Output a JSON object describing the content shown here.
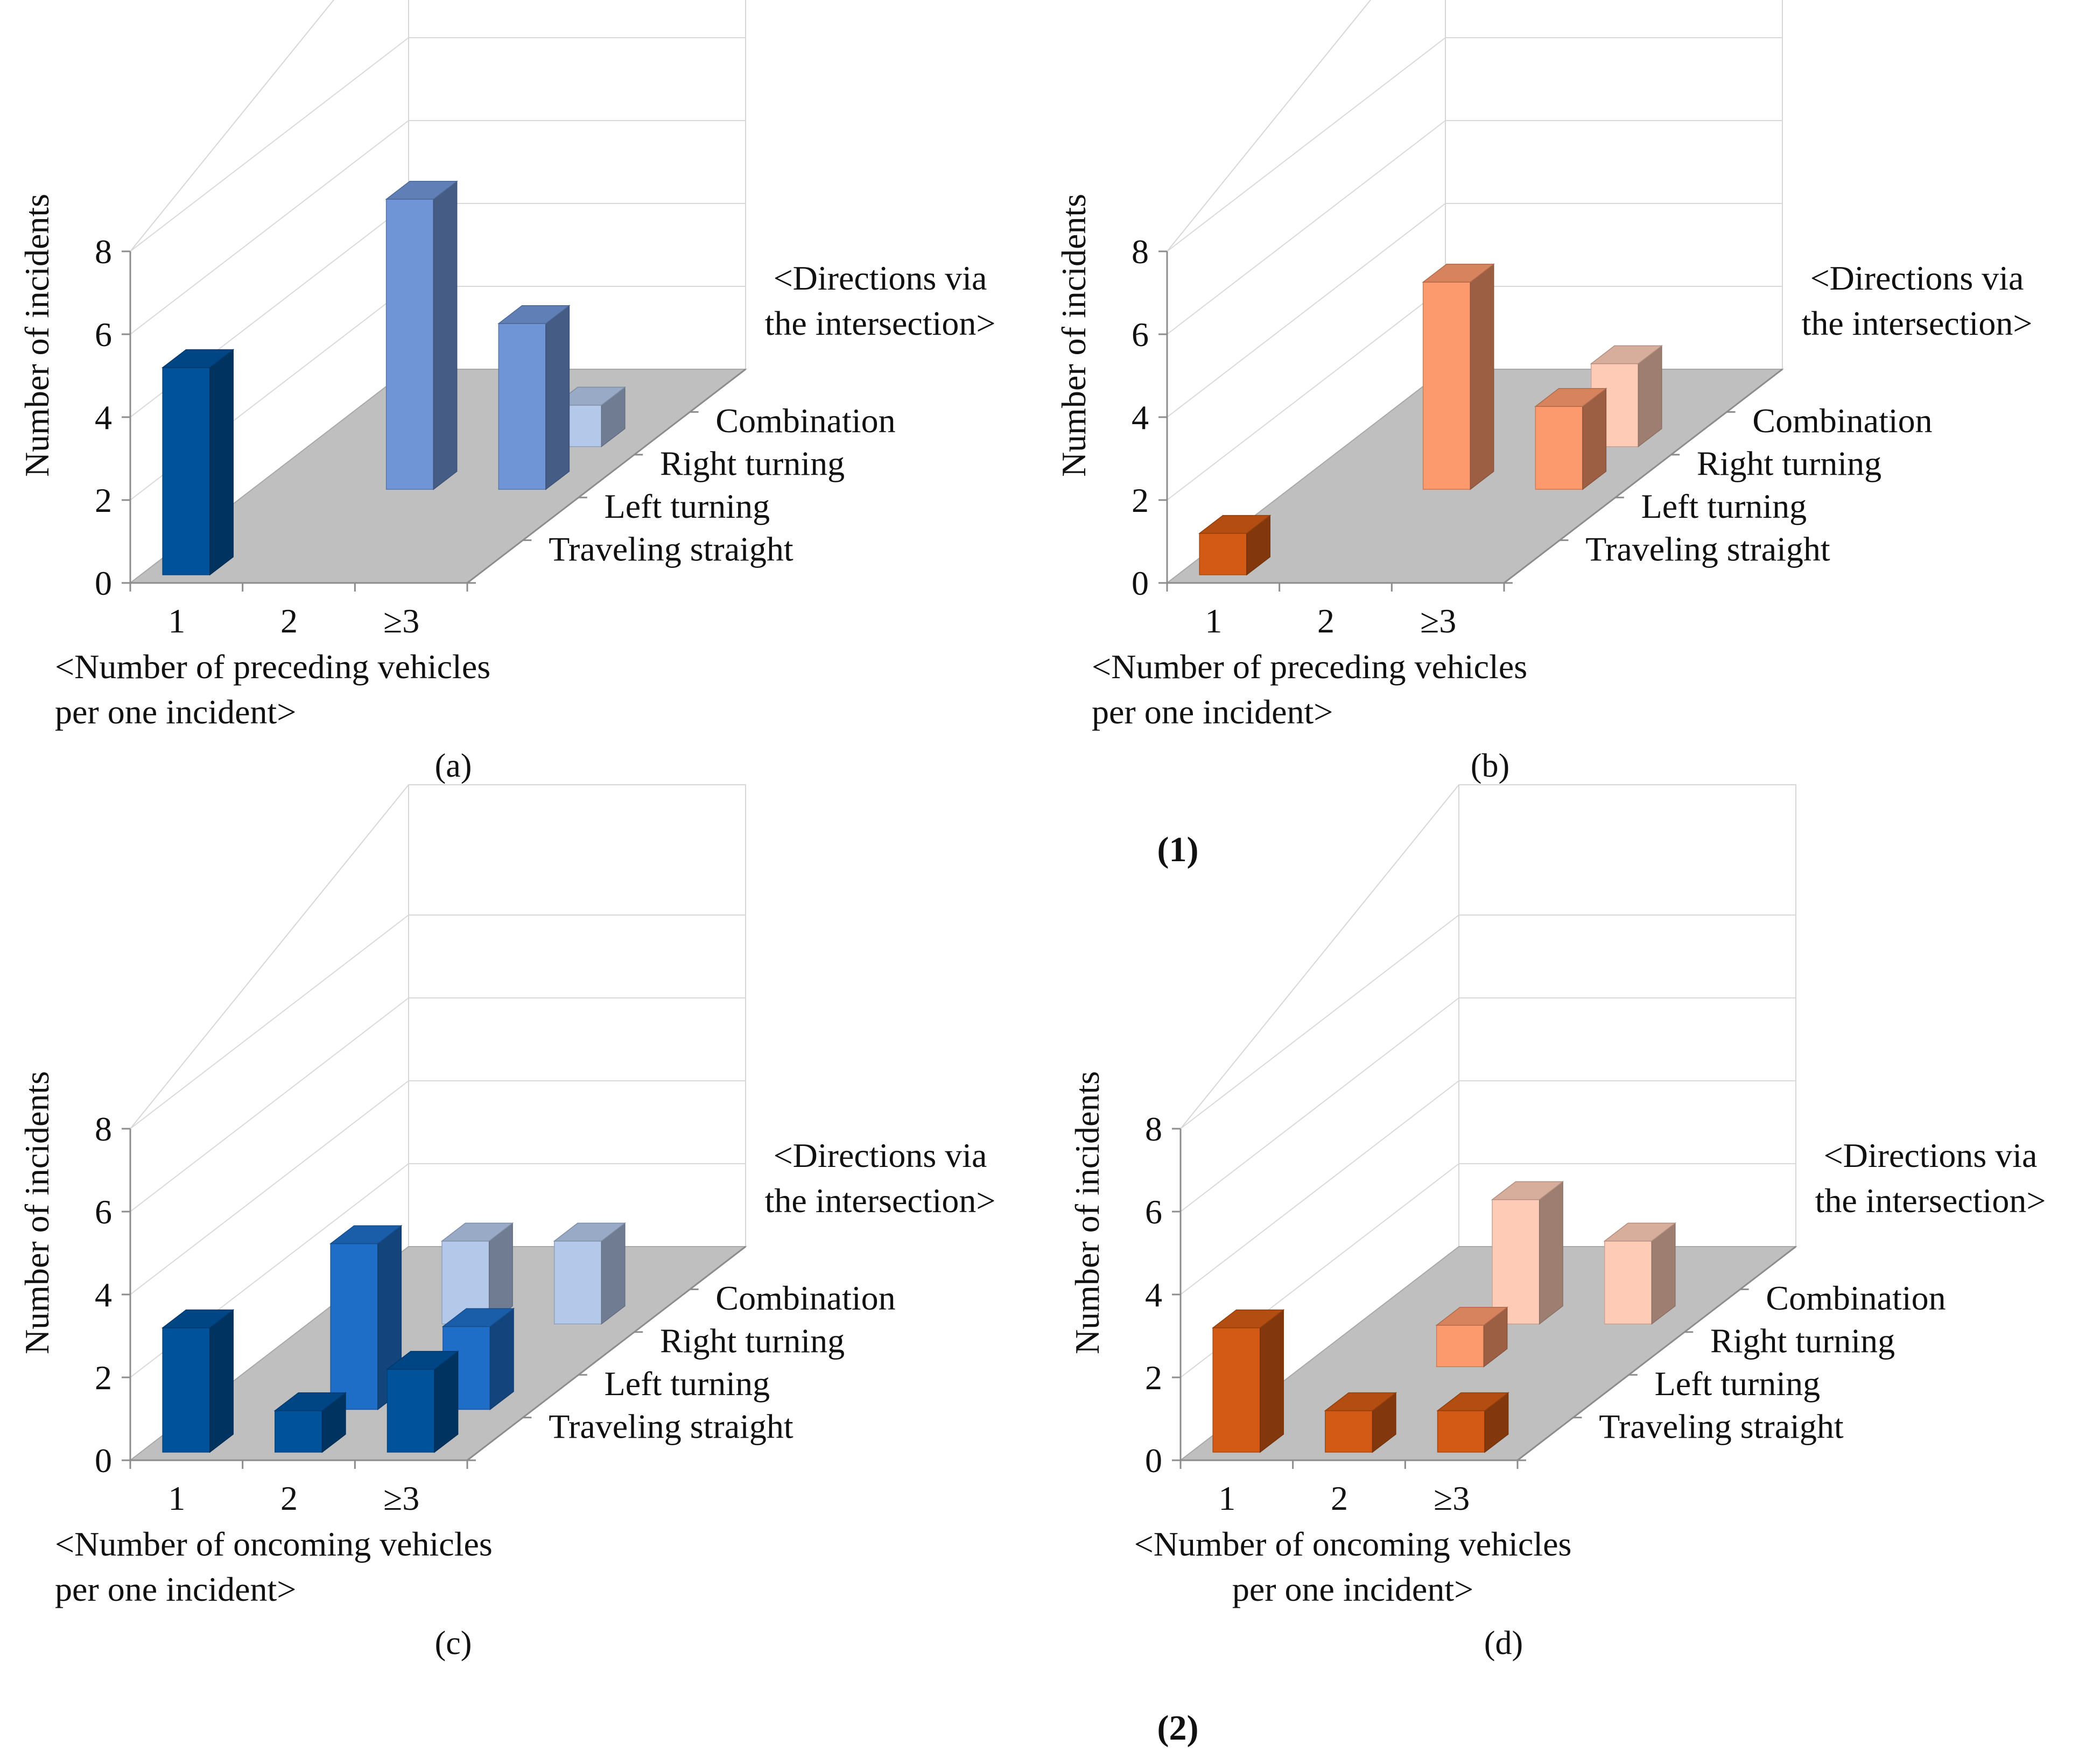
{
  "figure": {
    "group_captions": [
      "(1)",
      "(2)"
    ]
  },
  "chart_data": [
    {
      "id": "a",
      "type": "bar3d",
      "caption": "(a)",
      "categories": [
        "1",
        "2",
        "≥3"
      ],
      "series": [
        {
          "name": "Traveling straight",
          "values": [
            5,
            0,
            0
          ],
          "color": "#00529b"
        },
        {
          "name": "Left turning",
          "values": [
            0,
            0,
            0
          ],
          "color": "#1e6ec8"
        },
        {
          "name": "Right turning",
          "values": [
            0,
            7,
            4
          ],
          "color": "#7095d6"
        },
        {
          "name": "Combination",
          "values": [
            0,
            0,
            1
          ],
          "color": "#b4c8ea"
        }
      ],
      "ylabel": "Number of incidents",
      "xlabel": [
        "<Number of preceding vehicles",
        "per one incident>"
      ],
      "zlabel": [
        "<Directions via",
        "the intersection>"
      ],
      "yticks": [
        0,
        2,
        4,
        6,
        8
      ],
      "ylim": [
        0,
        8
      ]
    },
    {
      "id": "b",
      "type": "bar3d",
      "caption": "(b)",
      "categories": [
        "1",
        "2",
        "≥3"
      ],
      "series": [
        {
          "name": "Traveling straight",
          "values": [
            1,
            0,
            0
          ],
          "color": "#d25a14"
        },
        {
          "name": "Left turning",
          "values": [
            0,
            0,
            0
          ],
          "color": "#e8743a"
        },
        {
          "name": "Right turning",
          "values": [
            0,
            5,
            2
          ],
          "color": "#fc9a6e"
        },
        {
          "name": "Combination",
          "values": [
            0,
            0,
            2
          ],
          "color": "#fdcbb6"
        }
      ],
      "ylabel": "Number of incidents",
      "xlabel": [
        "<Number of preceding vehicles",
        "per one incident>"
      ],
      "zlabel": [
        "<Directions via",
        "the intersection>"
      ],
      "yticks": [
        0,
        2,
        4,
        6,
        8
      ],
      "ylim": [
        0,
        8
      ]
    },
    {
      "id": "c",
      "type": "bar3d",
      "caption": "(c)",
      "categories": [
        "1",
        "2",
        "≥3"
      ],
      "series": [
        {
          "name": "Traveling straight",
          "values": [
            3,
            1,
            2
          ],
          "color": "#00529b"
        },
        {
          "name": "Left turning",
          "values": [
            0,
            4,
            2
          ],
          "color": "#1e6ec8"
        },
        {
          "name": "Right turning",
          "values": [
            0,
            0,
            0
          ],
          "color": "#7095d6"
        },
        {
          "name": "Combination",
          "values": [
            0,
            2,
            2
          ],
          "color": "#b4c8ea"
        }
      ],
      "ylabel": "Number of incidents",
      "xlabel": [
        "<Number of oncoming vehicles",
        "per one incident>"
      ],
      "zlabel": [
        "<Directions via",
        "the intersection>"
      ],
      "yticks": [
        0,
        2,
        4,
        6,
        8
      ],
      "ylim": [
        0,
        8
      ]
    },
    {
      "id": "d",
      "type": "bar3d",
      "caption": "(d)",
      "categories": [
        "1",
        "2",
        "≥3"
      ],
      "series": [
        {
          "name": "Traveling straight",
          "values": [
            3,
            1,
            1
          ],
          "color": "#d25a14"
        },
        {
          "name": "Left turning",
          "values": [
            0,
            0,
            0
          ],
          "color": "#e8743a"
        },
        {
          "name": "Right turning",
          "values": [
            0,
            1,
            0
          ],
          "color": "#fc9a6e"
        },
        {
          "name": "Combination",
          "values": [
            0,
            3,
            2
          ],
          "color": "#fdcbb6"
        }
      ],
      "ylabel": "Number of incidents",
      "xlabel": [
        "<Number of oncoming vehicles",
        "per one incident>"
      ],
      "zlabel": [
        "<Directions via",
        "the intersection>"
      ],
      "yticks": [
        0,
        2,
        4,
        6,
        8
      ],
      "ylim": [
        0,
        8
      ]
    }
  ]
}
